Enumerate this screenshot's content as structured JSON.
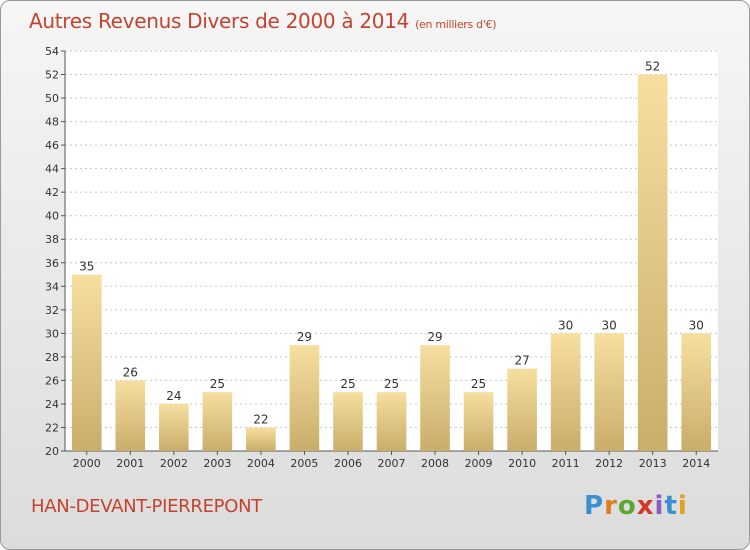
{
  "title": "Autres Revenus Divers de 2000 à 2014",
  "subtitle": "(en milliers d'€)",
  "commune": "HAN-DEVANT-PIERREPONT",
  "logo": {
    "letters": [
      "P",
      "r",
      "o",
      "x",
      "i",
      "t",
      "i"
    ],
    "colors": [
      "#3a8fd0",
      "#e07b20",
      "#5aa832",
      "#d23a2a",
      "#8a5bc0",
      "#3a8fd0",
      "#e0a020"
    ]
  },
  "colors": {
    "accent": "#c5432e",
    "bar_top": "#f7dfa0",
    "bar_bottom": "#c9ad6a"
  },
  "chart_data": {
    "type": "bar",
    "title": "Autres Revenus Divers de 2000 à 2014",
    "categories": [
      "2000",
      "2001",
      "2002",
      "2003",
      "2004",
      "2005",
      "2006",
      "2007",
      "2008",
      "2009",
      "2010",
      "2011",
      "2012",
      "2013",
      "2014"
    ],
    "values": [
      35,
      26,
      24,
      25,
      22,
      29,
      25,
      25,
      29,
      25,
      27,
      30,
      30,
      52,
      30
    ],
    "ylim": [
      20,
      54
    ],
    "yticks": [
      20,
      22,
      24,
      26,
      28,
      30,
      32,
      34,
      36,
      38,
      40,
      42,
      44,
      46,
      48,
      50,
      52,
      54
    ],
    "grid": true
  }
}
